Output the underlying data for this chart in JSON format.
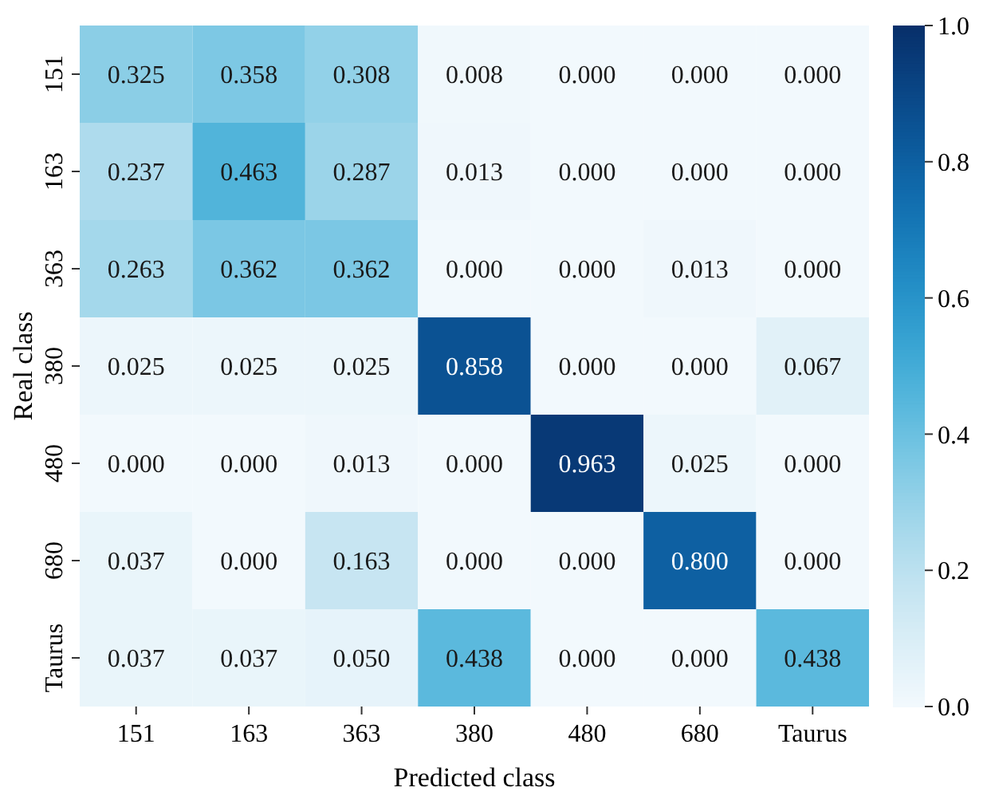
{
  "chart_data": {
    "type": "heatmap",
    "xlabel": "Predicted class",
    "ylabel": "Real class",
    "categories": [
      "151",
      "163",
      "363",
      "380",
      "480",
      "680",
      "Taurus"
    ],
    "y_categories": [
      "151",
      "163",
      "363",
      "380",
      "480",
      "680",
      "Taurus"
    ],
    "cells": [
      [
        0.325,
        0.358,
        0.308,
        0.008,
        0.0,
        0.0,
        0.0
      ],
      [
        0.237,
        0.463,
        0.287,
        0.013,
        0.0,
        0.0,
        0.0
      ],
      [
        0.263,
        0.362,
        0.362,
        0.0,
        0.0,
        0.013,
        0.0
      ],
      [
        0.025,
        0.025,
        0.025,
        0.858,
        0.0,
        0.0,
        0.067
      ],
      [
        0.0,
        0.0,
        0.013,
        0.0,
        0.963,
        0.025,
        0.0
      ],
      [
        0.037,
        0.0,
        0.163,
        0.0,
        0.0,
        0.8,
        0.0
      ],
      [
        0.037,
        0.037,
        0.05,
        0.438,
        0.0,
        0.0,
        0.438
      ]
    ],
    "cell_labels": [
      [
        "0.325",
        "0.358",
        "0.308",
        "0.008",
        "0.000",
        "0.000",
        "0.000"
      ],
      [
        "0.237",
        "0.463",
        "0.287",
        "0.013",
        "0.000",
        "0.000",
        "0.000"
      ],
      [
        "0.263",
        "0.362",
        "0.362",
        "0.000",
        "0.000",
        "0.013",
        "0.000"
      ],
      [
        "0.025",
        "0.025",
        "0.025",
        "0.858",
        "0.000",
        "0.000",
        "0.067"
      ],
      [
        "0.000",
        "0.000",
        "0.013",
        "0.000",
        "0.963",
        "0.025",
        "0.000"
      ],
      [
        "0.037",
        "0.000",
        "0.163",
        "0.000",
        "0.000",
        "0.800",
        "0.000"
      ],
      [
        "0.037",
        "0.037",
        "0.050",
        "0.438",
        "0.000",
        "0.000",
        "0.438"
      ]
    ],
    "clim": [
      0,
      1
    ],
    "cticks": [
      {
        "value": 0,
        "label": "0.0"
      },
      {
        "value": 0.2,
        "label": "0.2"
      },
      {
        "value": 0.4,
        "label": "0.4"
      },
      {
        "value": 0.6,
        "label": "0.6"
      },
      {
        "value": 0.8,
        "label": "0.8"
      },
      {
        "value": 1,
        "label": "1.0"
      }
    ]
  }
}
